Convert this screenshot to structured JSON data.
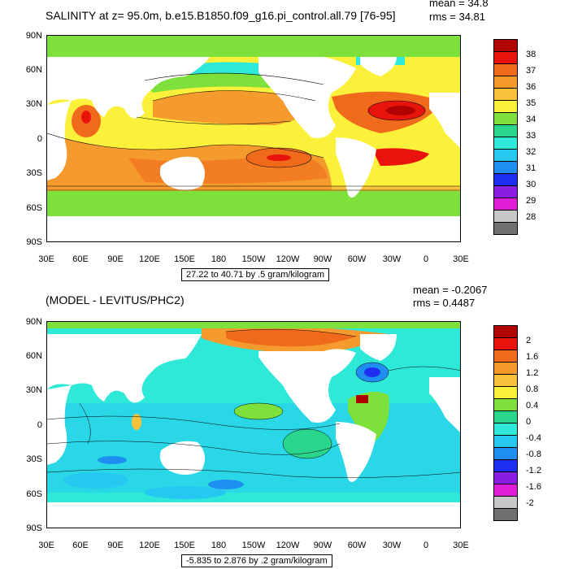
{
  "panels": [
    {
      "id": "top",
      "title": "SALINITY at z=  95.0m, b.e15.B1850.f09_g16.pi_control.all.79 [76-95]",
      "stat_mean": "mean = 34.8",
      "stat_rms": "rms = 34.81",
      "range_label": "27.22 to 40.71 by .5 gram/kilogram",
      "lat_labels": [
        "90N",
        "60N",
        "30N",
        "0",
        "30S",
        "60S",
        "90S"
      ],
      "lon_labels": [
        "30E",
        "60E",
        "90E",
        "120E",
        "150E",
        "180",
        "150W",
        "120W",
        "90W",
        "60W",
        "30W",
        "0",
        "30E"
      ],
      "colorbar": {
        "labels": [
          "38",
          "37",
          "36",
          "35",
          "34",
          "33",
          "32",
          "31",
          "30",
          "29",
          "28"
        ],
        "colors": [
          "#b00000",
          "#e8140c",
          "#f06a1c",
          "#f59a2c",
          "#f8c23a",
          "#fbf03a",
          "#7ee03a",
          "#2ad68c",
          "#2ee8d8",
          "#26c8f2",
          "#1e8ef0",
          "#1e2ef0",
          "#8a1ee0",
          "#e01ed8",
          "#c8c8c8",
          "#707070"
        ]
      },
      "chart_data": {
        "type": "heatmap",
        "title": "SALINITY at z=  95.0m, b.e15.B1850.f09_g16.pi_control.all.79 [76-95]",
        "lat_range": [
          "90S",
          "90N"
        ],
        "lon_range": [
          "30E",
          "30E"
        ],
        "mean": 34.8,
        "rms": 34.81,
        "min": 27.22,
        "max": 40.71,
        "contour_interval": 0.5,
        "units": "gram/kilogram",
        "colorbar_levels": [
          28,
          29,
          30,
          31,
          32,
          33,
          34,
          35,
          36,
          37,
          38
        ]
      }
    },
    {
      "id": "bottom",
      "title": "(MODEL - LEVITUS/PHC2)",
      "stat_mean": "mean = -0.2067",
      "stat_rms": "rms = 0.4487",
      "range_label": "-5.835 to 2.876 by .2 gram/kilogram",
      "lat_labels": [
        "90N",
        "60N",
        "30N",
        "0",
        "30S",
        "60S",
        "90S"
      ],
      "lon_labels": [
        "30E",
        "60E",
        "90E",
        "120E",
        "150E",
        "180",
        "150W",
        "120W",
        "90W",
        "60W",
        "30W",
        "0",
        "30E"
      ],
      "colorbar": {
        "labels": [
          "2",
          "1.6",
          "1.2",
          "0.8",
          "0.4",
          "0",
          "-0.4",
          "-0.8",
          "-1.2",
          "-1.6",
          "-2"
        ],
        "colors": [
          "#b00000",
          "#e8140c",
          "#f06a1c",
          "#f59a2c",
          "#f8c23a",
          "#fbf03a",
          "#7ee03a",
          "#2ad68c",
          "#2ee8d8",
          "#26c8f2",
          "#1e8ef0",
          "#1e2ef0",
          "#8a1ee0",
          "#e01ed8",
          "#c8c8c8",
          "#707070"
        ]
      },
      "chart_data": {
        "type": "heatmap",
        "title": "(MODEL - LEVITUS/PHC2)",
        "lat_range": [
          "90S",
          "90N"
        ],
        "lon_range": [
          "30E",
          "30E"
        ],
        "mean": -0.2067,
        "rms": 0.4487,
        "min": -5.835,
        "max": 2.876,
        "contour_interval": 0.2,
        "units": "gram/kilogram",
        "colorbar_levels": [
          -2,
          -1.6,
          -1.2,
          -0.8,
          -0.4,
          0,
          0.4,
          0.8,
          1.2,
          1.6,
          2
        ]
      }
    }
  ]
}
